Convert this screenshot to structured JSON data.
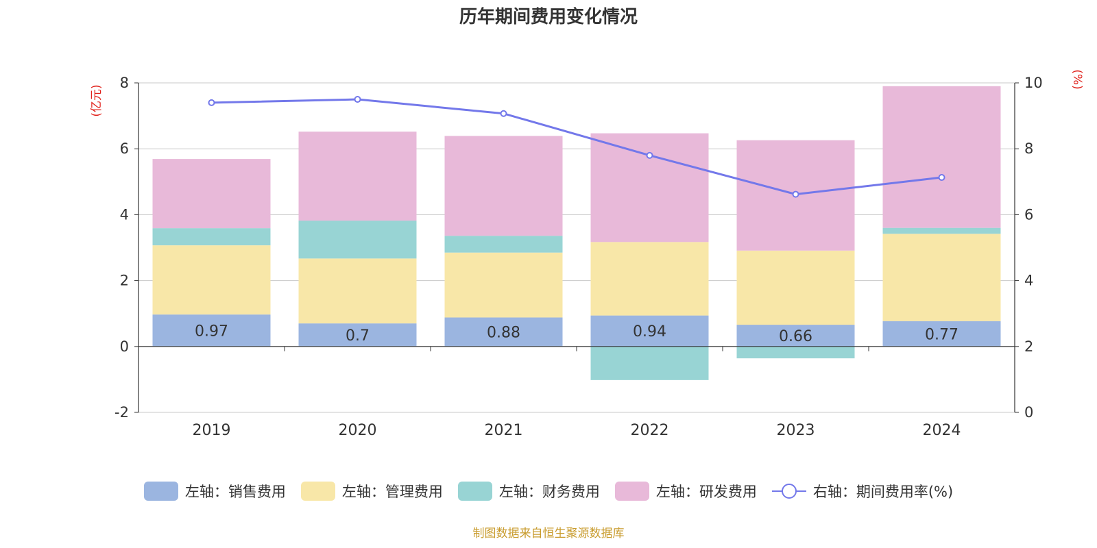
{
  "chart_data": {
    "type": "bar",
    "title": "历年期间费用变化情况",
    "stacked": true,
    "categories": [
      "2019",
      "2020",
      "2021",
      "2022",
      "2023",
      "2024"
    ],
    "series": [
      {
        "name": "左轴：销售费用",
        "axis": "left",
        "color": "#9bb5e0",
        "values": [
          0.97,
          0.7,
          0.88,
          0.94,
          0.66,
          0.77
        ]
      },
      {
        "name": "左轴：管理费用",
        "axis": "left",
        "color": "#f8e7a8",
        "values": [
          2.1,
          1.97,
          1.97,
          2.23,
          2.25,
          2.65
        ]
      },
      {
        "name": "左轴：财务费用",
        "axis": "left",
        "color": "#98d4d4",
        "values": [
          0.52,
          1.15,
          0.51,
          -1.02,
          -0.36,
          0.18
        ]
      },
      {
        "name": "左轴：研发费用",
        "axis": "left",
        "color": "#e8b9d9",
        "values": [
          2.1,
          2.7,
          3.03,
          3.3,
          3.35,
          4.3
        ]
      },
      {
        "name": "右轴：期间费用率(%)",
        "axis": "right",
        "type": "line",
        "color": "#7378ea",
        "values": [
          9.4,
          9.5,
          9.07,
          7.8,
          6.62,
          7.13
        ]
      }
    ],
    "data_labels_series": "左轴：销售费用",
    "y_left": {
      "label": "(亿元)",
      "ylim": [
        -2,
        8
      ],
      "ticks": [
        -2,
        0,
        2,
        4,
        6,
        8
      ]
    },
    "y_right": {
      "label": "(%)",
      "ylim": [
        0,
        10
      ],
      "ticks": [
        0,
        2,
        4,
        6,
        8,
        10
      ]
    },
    "grid": true,
    "legend_position": "bottom"
  },
  "source_note": "制图数据来自恒生聚源数据库"
}
